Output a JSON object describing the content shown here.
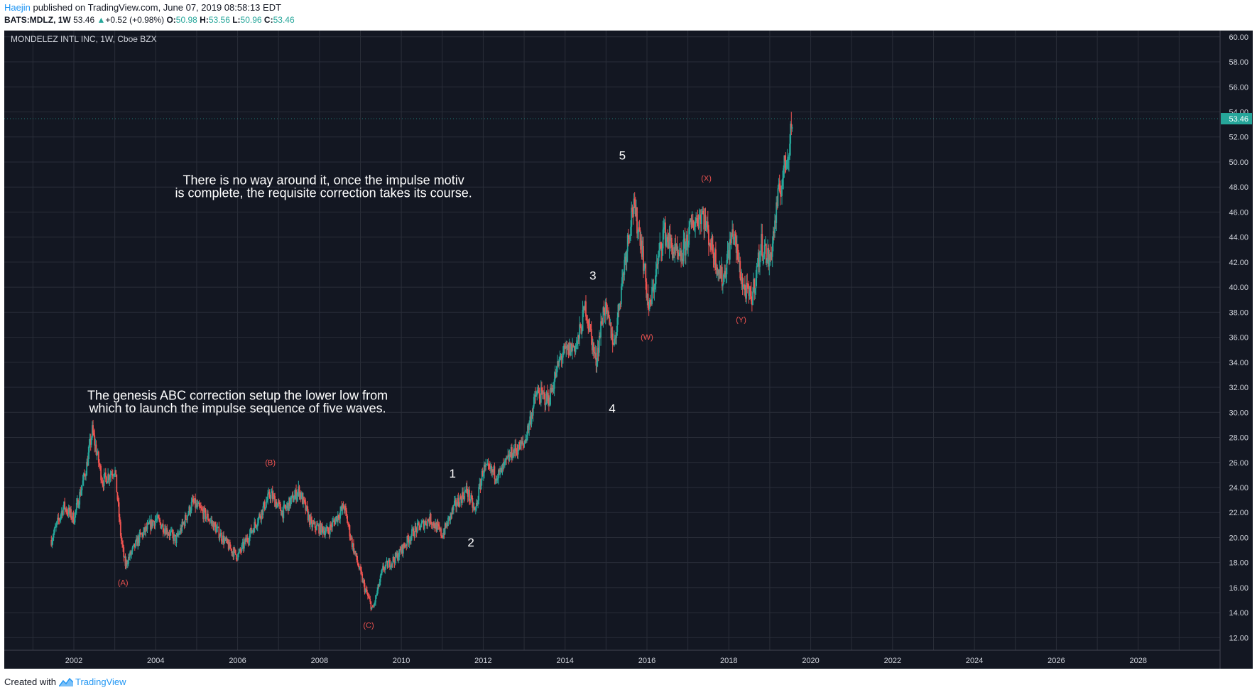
{
  "header": {
    "author": "Haejin",
    "published_text": " published on TradingView.com, June 07, 2019 08:58:13 EDT",
    "symbol": "BATS:MDLZ, 1W",
    "last": "53.46",
    "change": "+0.52 (+0.98%)",
    "o_label": "O:",
    "o_value": "50.98",
    "h_label": "H:",
    "h_value": "53.56",
    "l_label": "L:",
    "l_value": "50.96",
    "c_label": "C:",
    "c_value": "53.46"
  },
  "footer": {
    "created_with": "Created with",
    "brand": "TradingView"
  },
  "colors": {
    "background": "#131722",
    "grid": "#2a2e39",
    "up": "#26a69a",
    "down": "#ef5350",
    "text": "#d1d4dc",
    "price_label": "#26a69a"
  },
  "chart_data": {
    "type": "candlestick",
    "title": "MONDELEZ INTL INC, 1W, Cboe BZX",
    "x_ticks": [
      "2002",
      "2004",
      "2006",
      "2008",
      "2010",
      "2012",
      "2014",
      "2016",
      "2018",
      "2020",
      "2022",
      "2024",
      "2026",
      "2028"
    ],
    "y_ticks": [
      "12.00",
      "14.00",
      "16.00",
      "18.00",
      "20.00",
      "22.00",
      "24.00",
      "26.00",
      "28.00",
      "30.00",
      "32.00",
      "34.00",
      "36.00",
      "38.00",
      "40.00",
      "42.00",
      "44.00",
      "46.00",
      "48.00",
      "50.00",
      "52.00",
      "54.00",
      "56.00",
      "58.00",
      "60.00"
    ],
    "ylim": [
      11,
      60.5
    ],
    "xlim": [
      2000.3,
      2030.0
    ],
    "last_price": "53.46",
    "price_path": [
      [
        2001.45,
        19.8
      ],
      [
        2001.75,
        22.5
      ],
      [
        2002.0,
        21.5
      ],
      [
        2002.3,
        25.5
      ],
      [
        2002.45,
        28.5
      ],
      [
        2002.7,
        24.5
      ],
      [
        2003.0,
        25.5
      ],
      [
        2003.15,
        20.0
      ],
      [
        2003.25,
        17.8
      ],
      [
        2003.6,
        20.0
      ],
      [
        2004.0,
        21.5
      ],
      [
        2004.5,
        19.8
      ],
      [
        2004.9,
        22.8
      ],
      [
        2005.3,
        21.5
      ],
      [
        2005.8,
        19.2
      ],
      [
        2006.0,
        18.5
      ],
      [
        2006.5,
        21.5
      ],
      [
        2006.8,
        23.5
      ],
      [
        2007.1,
        22.0
      ],
      [
        2007.5,
        23.8
      ],
      [
        2007.8,
        21.0
      ],
      [
        2008.2,
        20.5
      ],
      [
        2008.6,
        22.5
      ],
      [
        2008.8,
        19.5
      ],
      [
        2009.1,
        16.0
      ],
      [
        2009.3,
        14.2
      ],
      [
        2009.55,
        17.5
      ],
      [
        2009.9,
        18.5
      ],
      [
        2010.3,
        20.5
      ],
      [
        2010.7,
        21.5
      ],
      [
        2011.0,
        20.2
      ],
      [
        2011.3,
        22.5
      ],
      [
        2011.6,
        23.8
      ],
      [
        2011.8,
        22.0
      ],
      [
        2012.0,
        25.5
      ],
      [
        2012.4,
        25.0
      ],
      [
        2012.7,
        26.8
      ],
      [
        2013.0,
        27.5
      ],
      [
        2013.3,
        31.5
      ],
      [
        2013.6,
        31.0
      ],
      [
        2013.9,
        34.5
      ],
      [
        2014.3,
        35.5
      ],
      [
        2014.5,
        38.5
      ],
      [
        2014.75,
        34.0
      ],
      [
        2014.95,
        38.5
      ],
      [
        2015.2,
        35.5
      ],
      [
        2015.45,
        42.0
      ],
      [
        2015.65,
        46.5
      ],
      [
        2015.85,
        44.0
      ],
      [
        2016.05,
        38.0
      ],
      [
        2016.4,
        44.5
      ],
      [
        2016.8,
        42.0
      ],
      [
        2017.1,
        45.0
      ],
      [
        2017.35,
        46.0
      ],
      [
        2017.6,
        43.0
      ],
      [
        2017.85,
        40.5
      ],
      [
        2018.1,
        44.5
      ],
      [
        2018.35,
        40.0
      ],
      [
        2018.55,
        39.0
      ],
      [
        2018.8,
        43.5
      ],
      [
        2019.0,
        42.0
      ],
      [
        2019.2,
        47.0
      ],
      [
        2019.45,
        51.0
      ],
      [
        2019.55,
        53.46
      ]
    ],
    "wave_labels": [
      {
        "text": "1",
        "x": 2011.25,
        "y": 24.8,
        "color": "white"
      },
      {
        "text": "2",
        "x": 2011.7,
        "y": 19.3,
        "color": "white"
      },
      {
        "text": "3",
        "x": 2014.68,
        "y": 40.6,
        "color": "white"
      },
      {
        "text": "4",
        "x": 2015.15,
        "y": 30.0,
        "color": "white"
      },
      {
        "text": "5",
        "x": 2015.4,
        "y": 50.2,
        "color": "white"
      },
      {
        "text": "(A)",
        "x": 2003.2,
        "y": 16.2,
        "color": "red"
      },
      {
        "text": "(B)",
        "x": 2006.8,
        "y": 25.8,
        "color": "red"
      },
      {
        "text": "(C)",
        "x": 2009.2,
        "y": 12.8,
        "color": "red"
      },
      {
        "text": "(W)",
        "x": 2016.0,
        "y": 35.8,
        "color": "red"
      },
      {
        "text": "(X)",
        "x": 2017.45,
        "y": 48.5,
        "color": "red"
      },
      {
        "text": "(Y)",
        "x": 2018.3,
        "y": 37.2,
        "color": "red"
      }
    ],
    "annotations": [
      {
        "line1": "There is no way around it, once the impulse motiv",
        "line2": "is complete, the requisite correction takes its course.",
        "x": 2008.1,
        "y": 48.2
      },
      {
        "line1": "The genesis ABC correction setup the lower low from",
        "line2": "which to launch the impulse sequence of five waves.",
        "x": 2006.0,
        "y": 31.0
      }
    ]
  }
}
